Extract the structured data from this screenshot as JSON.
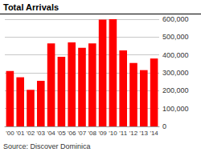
{
  "chart_data": {
    "type": "bar",
    "title": "Total Arrivals",
    "categories": [
      "'00",
      "'01",
      "'02",
      "'03",
      "'04",
      "'05",
      "'06",
      "'07",
      "'08",
      "'09",
      "'10",
      "'11",
      "'12",
      "'13",
      "'14"
    ],
    "values": [
      310000,
      275000,
      205000,
      255000,
      465000,
      390000,
      470000,
      440000,
      465000,
      598000,
      600000,
      425000,
      355000,
      315000,
      380000
    ],
    "color": "#ff0000",
    "ylim": [
      0,
      600000
    ],
    "yticks": [
      0,
      {
        "value": 100000,
        "label": "100,000"
      },
      {
        "value": 200000,
        "label": "200,000"
      },
      {
        "value": 300000,
        "label": "300,000"
      },
      {
        "value": 400000,
        "label": "400,000"
      },
      {
        "value": 500000,
        "label": "500,000"
      },
      {
        "value": 600000,
        "label": "600,000"
      }
    ],
    "grid": true,
    "annotations": [
      "Source: Discover Dominica"
    ]
  }
}
